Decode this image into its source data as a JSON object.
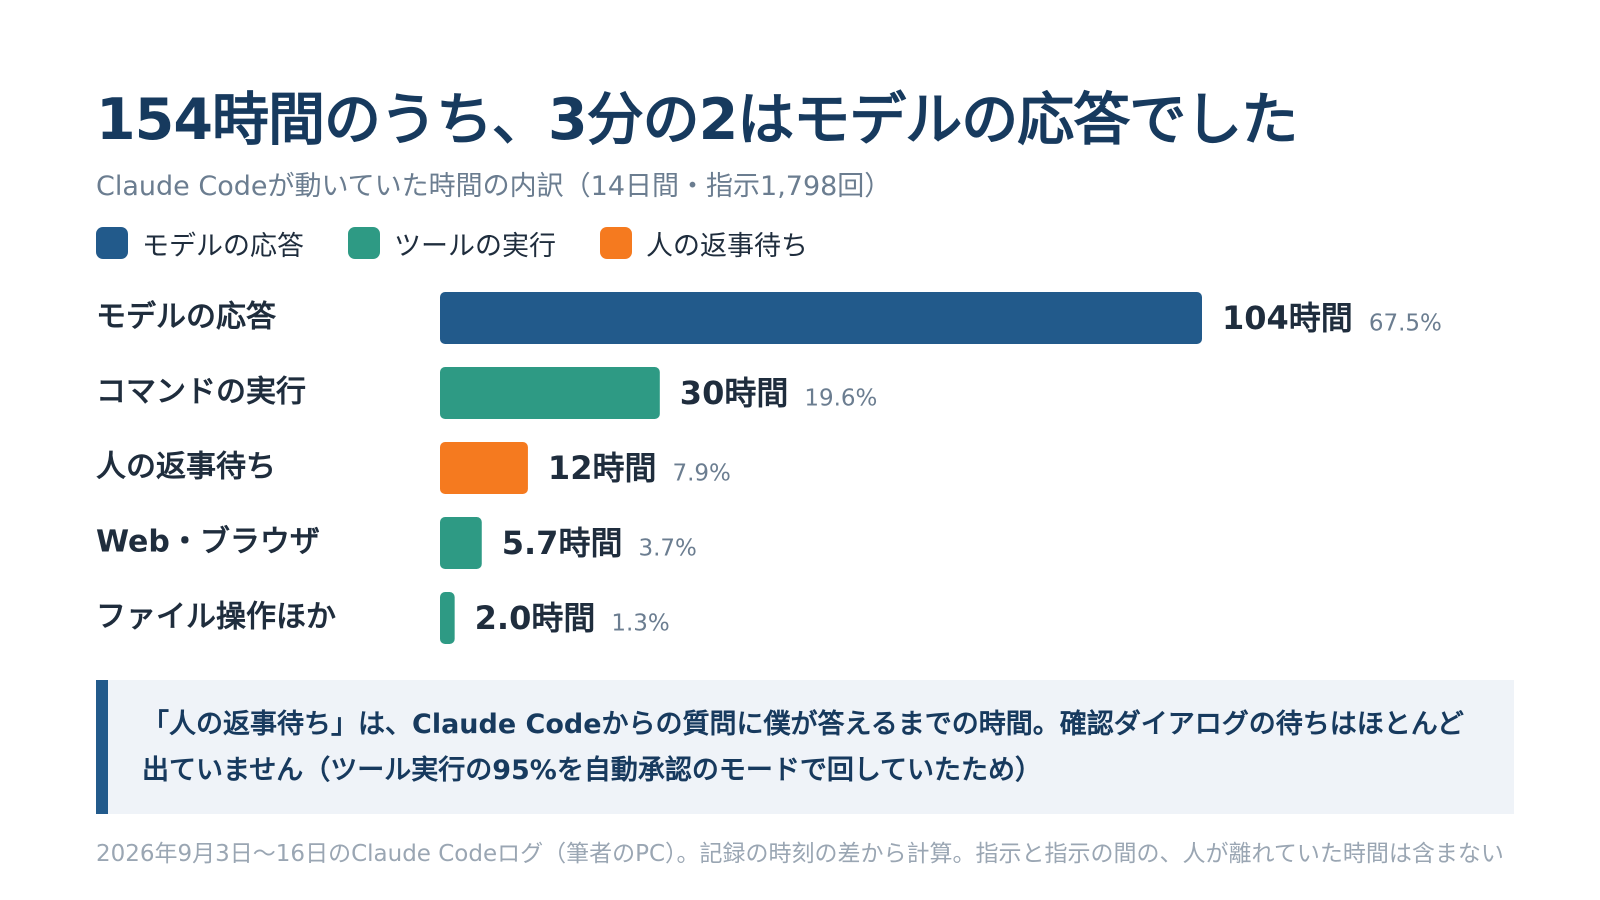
{
  "title": "154時間のうち、3分の2はモデルの応答でした",
  "subtitle": "Claude Codeが動いていた時間の内訳（14日間・指示1,798回）",
  "legend": [
    {
      "label": "モデルの応答",
      "color": "#225a8b"
    },
    {
      "label": "ツールの実行",
      "color": "#2e9a84"
    },
    {
      "label": "人の返事待ち",
      "color": "#f57a1f"
    }
  ],
  "colors": {
    "model": "#225a8b",
    "tool": "#2e9a84",
    "human": "#f57a1f",
    "value_text": "#1f2d3d",
    "pct_text": "#6b7d90"
  },
  "chart_data": {
    "type": "bar",
    "orientation": "horizontal",
    "categories": [
      "モデルの応答",
      "コマンドの実行",
      "人の返事待ち",
      "Web・ブラウザ",
      "ファイル操作ほか"
    ],
    "values": [
      104,
      30,
      12,
      5.7,
      2.0
    ],
    "value_labels": [
      "104時間",
      "30時間",
      "12時間",
      "5.7時間",
      "2.0時間"
    ],
    "percent_labels": [
      "67.5%",
      "19.6%",
      "7.9%",
      "3.7%",
      "1.3%"
    ],
    "bar_colors": [
      "#225a8b",
      "#2e9a84",
      "#f57a1f",
      "#2e9a84",
      "#2e9a84"
    ],
    "xlim": [
      0,
      104
    ],
    "grid": false,
    "legend_position": "top-left"
  },
  "callout": "「人の返事待ち」は、Claude Codeからの質問に僕が答えるまでの時間。確認ダイアログの待ちはほとんど出ていません（ツール実行の95%を自動承認のモードで回していたため）",
  "footnote": "2026年9月3日〜16日のClaude Codeログ（筆者のPC）。記録の時刻の差から計算。指示と指示の間の、人が離れていた時間は含まない"
}
